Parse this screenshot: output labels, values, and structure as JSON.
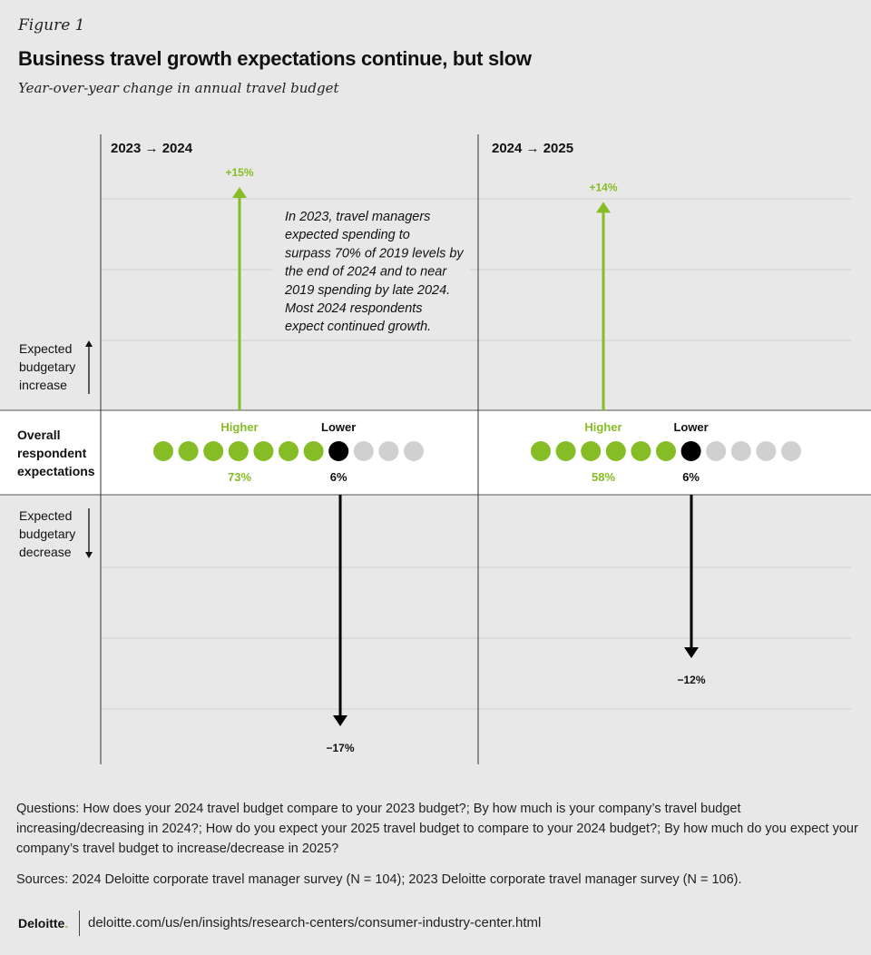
{
  "header": {
    "figure_label": "Figure 1",
    "title": "Business travel growth expectations continue, but slow",
    "subtitle": "Year-over-year change in annual travel budget"
  },
  "chart_data": {
    "type": "diverging-arrow",
    "title": "Business travel growth expectations continue, but slow",
    "subtitle": "Year-over-year change in annual travel budget",
    "unit": "percent change",
    "ylim": [
      -20,
      20
    ],
    "row_labels": {
      "increase": "Expected budgetary increase",
      "overall": "Overall respondent expectations",
      "decrease": "Expected budgetary decrease"
    },
    "dot_labels": {
      "higher": "Higher",
      "lower": "Lower"
    },
    "panels": [
      {
        "label": "2023 → 2024",
        "increase_value": 15,
        "increase_label": "+15%",
        "decrease_value": -17,
        "decrease_label": "−17%",
        "higher_pct": 73,
        "higher_label": "73%",
        "lower_pct": 6,
        "lower_label": "6%",
        "dots_total": 11,
        "dots_higher": 7,
        "dots_lower": 1
      },
      {
        "label": "2024 → 2025",
        "increase_value": 14,
        "increase_label": "+14%",
        "decrease_value": -12,
        "decrease_label": "−12%",
        "higher_pct": 58,
        "higher_label": "58%",
        "lower_pct": 6,
        "lower_label": "6%",
        "dots_total": 11,
        "dots_higher": 6,
        "dots_lower": 1
      }
    ],
    "annotation": "In 2023, travel managers expected spending to surpass 70% of 2019 levels by the end of 2024 and to near 2019 spending by late 2024. Most 2024 respondents expect continued growth.",
    "colors": {
      "higher": "#86bc25",
      "lower": "#000000",
      "neutral": "#d0d0d0",
      "band": "#ffffff",
      "background": "#e8e8e8",
      "gridline": "#cfcfcf"
    }
  },
  "notes": {
    "questions": "Questions: How does your 2024 travel budget compare to your 2023 budget?; By how much is your company’s travel budget increasing/decreasing in 2024?; How do you expect your 2025 travel budget to compare to your 2024 budget?; By how much do you expect your company’s travel budget to increase/decrease in 2025?",
    "sources": "Sources: 2024 Deloitte corporate travel manager survey (N = 104); 2023 Deloitte corporate travel manager survey (N = 106)."
  },
  "footer": {
    "brand": "Deloitte",
    "brand_dot": ".",
    "url": "deloitte.com/us/en/insights/research-centers/consumer-industry-center.html"
  }
}
